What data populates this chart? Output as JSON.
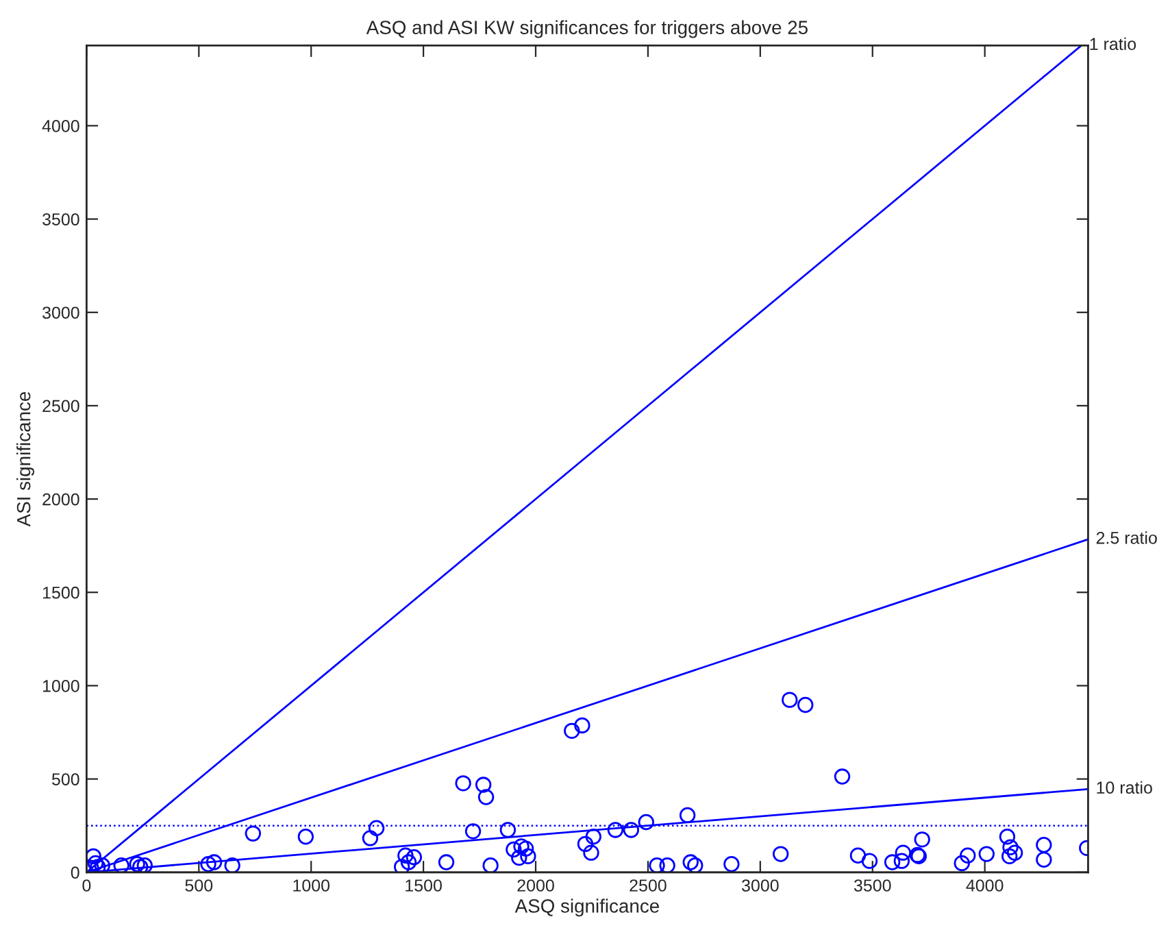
{
  "chart_data": {
    "type": "scatter",
    "title": "ASQ and ASI KW significances for triggers above 25",
    "xlabel": "ASQ significance",
    "ylabel": "ASI significance",
    "xlim": [
      0,
      4460
    ],
    "ylim": [
      0,
      4430
    ],
    "xticks": [
      0,
      500,
      1000,
      1500,
      2000,
      2500,
      3000,
      3500,
      4000
    ],
    "yticks": [
      0,
      500,
      1000,
      1500,
      2000,
      2500,
      3000,
      3500,
      4000
    ],
    "grid": false,
    "legend": false,
    "marker": "circle",
    "ref_lines": [
      {
        "axis": "y",
        "value": 250,
        "line_style": "dotted",
        "color": "#0000ff"
      }
    ],
    "series": [
      {
        "color": "#0000ff",
        "x": [
          30,
          40,
          20,
          50,
          70,
          155,
          225,
          239,
          259,
          542,
          568,
          649,
          741,
          976,
          1263,
          1291,
          1404,
          1420,
          1434,
          1458,
          1602,
          1677,
          1767,
          1779,
          1721,
          1799,
          1876,
          1902,
          1926,
          1936,
          1956,
          1966,
          2161,
          2207,
          2221,
          2247,
          2257,
          2355,
          2425,
          2492,
          2676,
          2540,
          2586,
          2690,
          2710,
          2872,
          3091,
          3131,
          3201,
          3365,
          3435,
          3487,
          3588,
          3636,
          3630,
          3700,
          3706,
          3721,
          3898,
          3924,
          4008,
          4100,
          4110,
          4114,
          4134,
          4263,
          4263,
          4455
        ],
        "values": [
          86,
          49,
          24,
          29,
          37,
          37,
          44,
          29,
          37,
          44,
          54,
          37,
          208,
          191,
          183,
          237,
          29,
          90,
          54,
          81,
          54,
          477,
          469,
          403,
          220,
          37,
          227,
          122,
          78,
          139,
          127,
          86,
          758,
          787,
          152,
          105,
          191,
          227,
          227,
          269,
          306,
          37,
          37,
          54,
          37,
          44,
          98,
          924,
          897,
          513,
          90,
          61,
          54,
          105,
          61,
          93,
          86,
          176,
          49,
          90,
          98,
          191,
          86,
          134,
          105,
          147,
          68,
          130
        ]
      },
      {
        "type": "line",
        "name": "1 ratio",
        "color": "#0000ff",
        "marker": "none",
        "x": [
          0,
          4430
        ],
        "values": [
          0,
          4430
        ]
      },
      {
        "type": "line",
        "name": "2.5 ratio",
        "color": "#0000ff",
        "marker": "none",
        "x": [
          0,
          4460
        ],
        "values": [
          0,
          1784
        ]
      },
      {
        "type": "line",
        "name": "10 ratio",
        "color": "#0000ff",
        "marker": "none",
        "x": [
          0,
          4460
        ],
        "values": [
          0,
          446
        ]
      }
    ]
  }
}
